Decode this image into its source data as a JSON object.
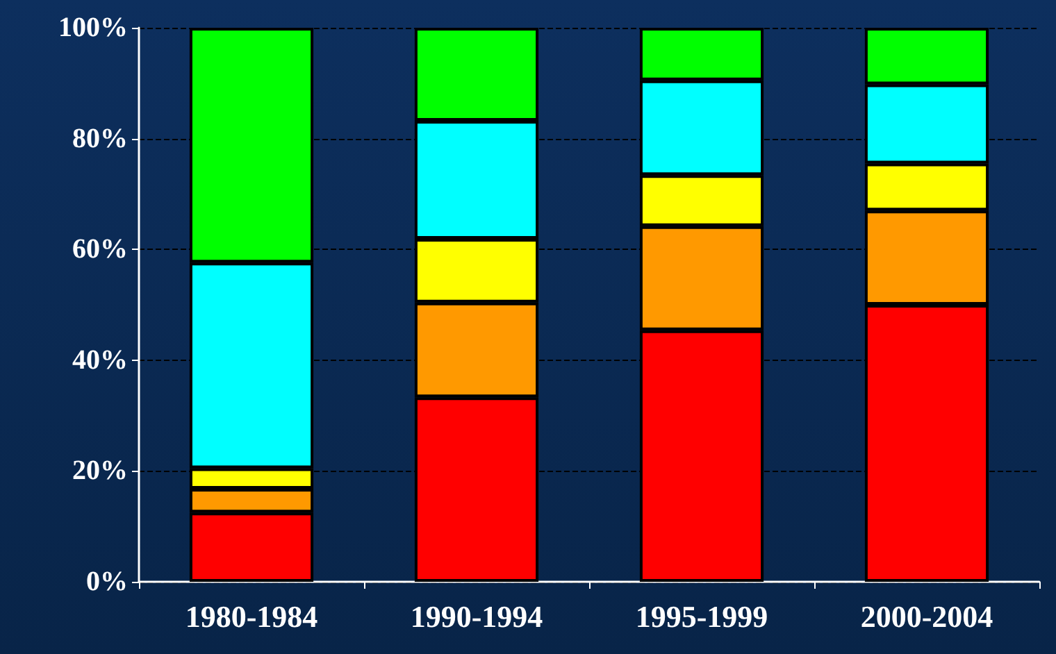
{
  "chart_data": {
    "type": "bar",
    "stacked": true,
    "categories": [
      "1980-1984",
      "1990-1994",
      "1995-1999",
      "2000-2004"
    ],
    "series": [
      {
        "color": "#ff0000",
        "values": [
          12.5,
          33.3,
          45.4,
          50
        ]
      },
      {
        "color": "#ff9900",
        "values": [
          4.3,
          17.1,
          18.8,
          17
        ]
      },
      {
        "color": "#ffff00",
        "values": [
          3.7,
          11.5,
          9.2,
          8.5
        ]
      },
      {
        "color": "#00ffff",
        "values": [
          37.1,
          21.3,
          17.1,
          14.3
        ]
      },
      {
        "color": "#00ff00",
        "values": [
          42.4,
          16.8,
          9.5,
          10.2
        ]
      }
    ],
    "ylim": [
      0,
      100
    ],
    "yticks": [
      {
        "value": 0,
        "label": "0%"
      },
      {
        "value": 20,
        "label": "20%"
      },
      {
        "value": 40,
        "label": "40%"
      },
      {
        "value": 60,
        "label": "60%"
      },
      {
        "value": 80,
        "label": "80%"
      },
      {
        "value": 100,
        "label": "100%"
      }
    ],
    "grid": "y",
    "legend": false
  }
}
